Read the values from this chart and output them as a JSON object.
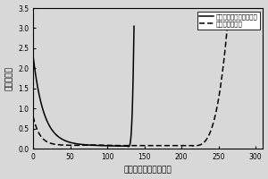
{
  "xlabel": "比容量（毫安时／克）",
  "ylabel": "电压（伏）",
  "xlim": [
    0,
    310
  ],
  "ylim": [
    0,
    3.5
  ],
  "xticks": [
    0,
    50,
    100,
    150,
    200,
    250,
    300
  ],
  "yticks": [
    0.0,
    0.5,
    1.0,
    1.5,
    2.0,
    2.5,
    3.0,
    3.5
  ],
  "legend": [
    "循环后未处理的废旧石墨",
    "水处理后的石墨"
  ],
  "bg_color": "#d8d8d8",
  "line_color": "#000000",
  "solid_start_x": 0,
  "solid_flat_end_x": 128,
  "solid_rise_end_x": 136,
  "dash_start_x": 0,
  "dash_drop_end_x": 60,
  "dash_flat_end_x": 215,
  "dash_rise_end_x": 260
}
